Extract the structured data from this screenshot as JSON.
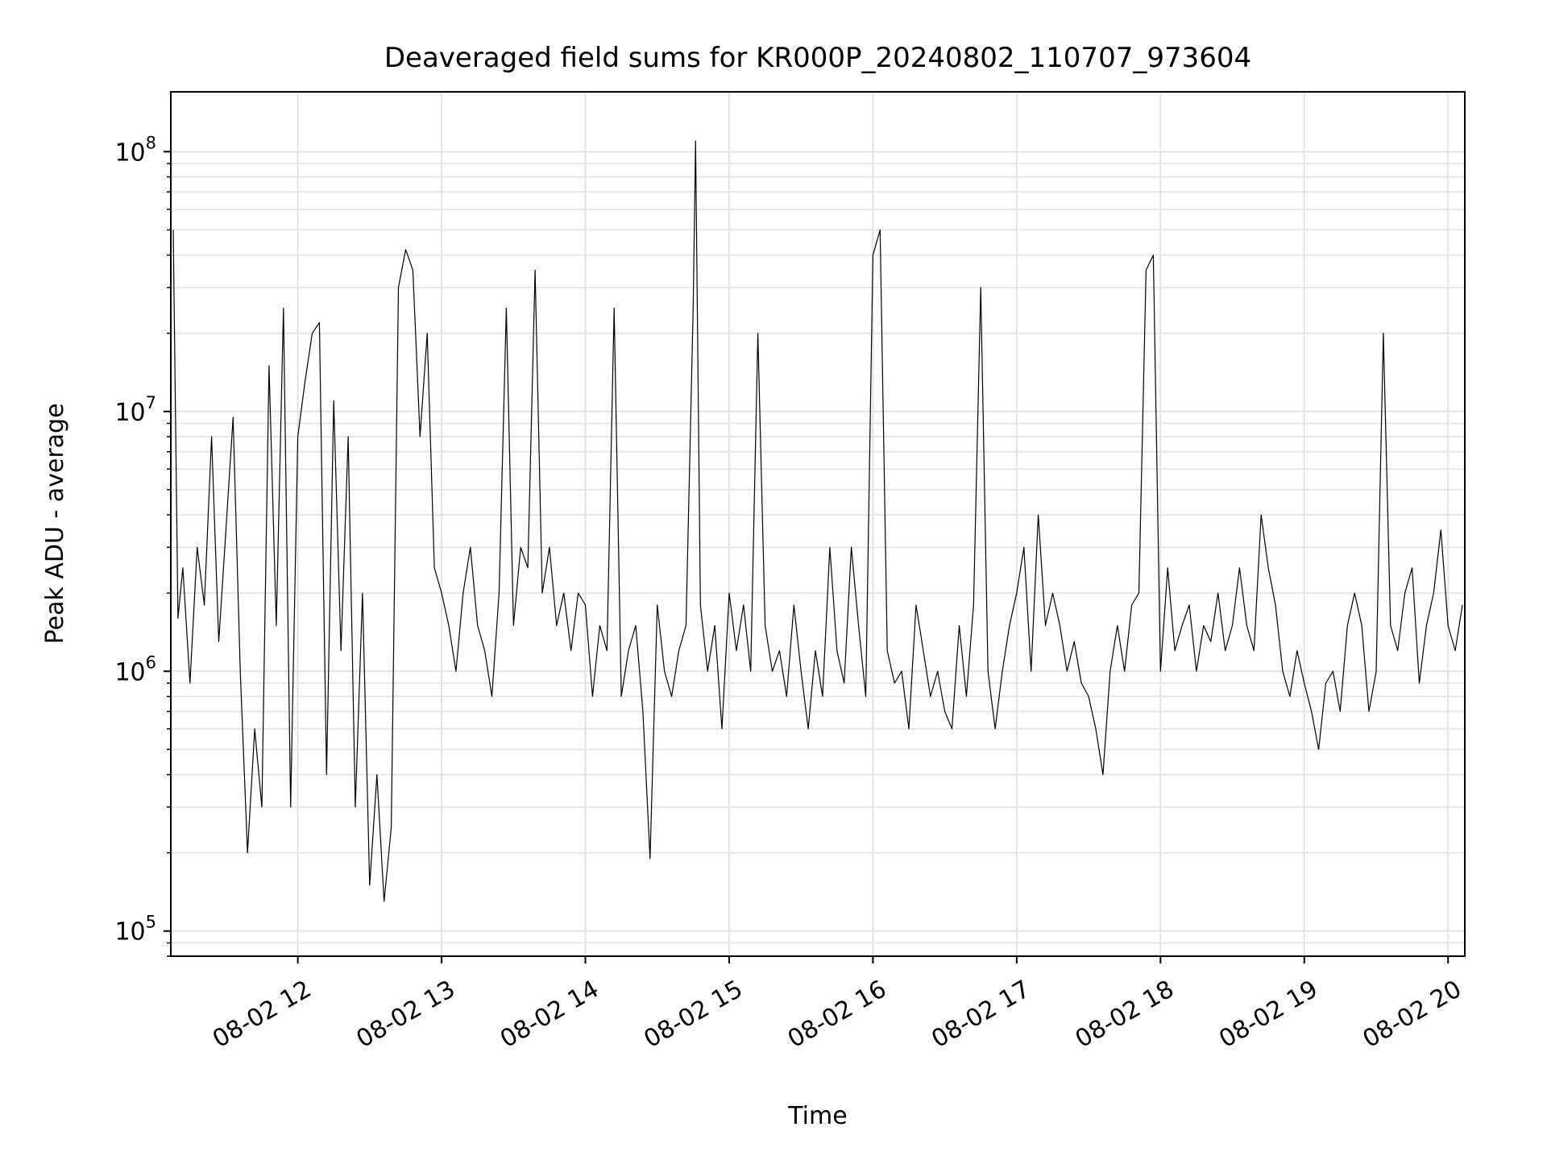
{
  "chart_data": {
    "type": "line",
    "title": "Deaveraged field sums for KR000P_20240802_110707_973604",
    "xlabel": "Time",
    "ylabel": "Peak ADU - average",
    "xlim": [
      "2024-08-02 11:07",
      "2024-08-02 20:07"
    ],
    "ylim": [
      80000,
      170000000
    ],
    "yscale": "log",
    "grid": true,
    "line_color": "#000000",
    "x_ticks": [
      "08-02 12",
      "08-02 13",
      "08-02 14",
      "08-02 15",
      "08-02 16",
      "08-02 17",
      "08-02 18",
      "08-02 19",
      "08-02 20"
    ],
    "y_ticks": [
      {
        "value": 100000,
        "base": "10",
        "exp": "5"
      },
      {
        "value": 1000000,
        "base": "10",
        "exp": "6"
      },
      {
        "value": 10000000,
        "base": "10",
        "exp": "7"
      },
      {
        "value": 100000000,
        "base": "10",
        "exp": "8"
      }
    ],
    "series": [
      {
        "x": [
          "2024-08-02 11:08",
          "2024-08-02 11:10",
          "2024-08-02 11:12",
          "2024-08-02 11:15",
          "2024-08-02 11:18",
          "2024-08-02 11:21",
          "2024-08-02 11:24",
          "2024-08-02 11:27",
          "2024-08-02 11:30",
          "2024-08-02 11:33",
          "2024-08-02 11:36",
          "2024-08-02 11:39",
          "2024-08-02 11:42",
          "2024-08-02 11:45",
          "2024-08-02 11:48",
          "2024-08-02 11:51",
          "2024-08-02 11:54",
          "2024-08-02 11:57",
          "2024-08-02 12:00",
          "2024-08-02 12:03",
          "2024-08-02 12:06",
          "2024-08-02 12:09",
          "2024-08-02 12:12",
          "2024-08-02 12:15",
          "2024-08-02 12:18",
          "2024-08-02 12:21",
          "2024-08-02 12:24",
          "2024-08-02 12:27",
          "2024-08-02 12:30",
          "2024-08-02 12:33",
          "2024-08-02 12:36",
          "2024-08-02 12:39",
          "2024-08-02 12:42",
          "2024-08-02 12:45",
          "2024-08-02 12:48",
          "2024-08-02 12:51",
          "2024-08-02 12:54",
          "2024-08-02 12:57",
          "2024-08-02 13:00",
          "2024-08-02 13:03",
          "2024-08-02 13:06",
          "2024-08-02 13:09",
          "2024-08-02 13:12",
          "2024-08-02 13:15",
          "2024-08-02 13:18",
          "2024-08-02 13:21",
          "2024-08-02 13:24",
          "2024-08-02 13:27",
          "2024-08-02 13:30",
          "2024-08-02 13:33",
          "2024-08-02 13:36",
          "2024-08-02 13:39",
          "2024-08-02 13:42",
          "2024-08-02 13:45",
          "2024-08-02 13:48",
          "2024-08-02 13:51",
          "2024-08-02 13:54",
          "2024-08-02 13:57",
          "2024-08-02 14:00",
          "2024-08-02 14:03",
          "2024-08-02 14:06",
          "2024-08-02 14:09",
          "2024-08-02 14:12",
          "2024-08-02 14:15",
          "2024-08-02 14:18",
          "2024-08-02 14:21",
          "2024-08-02 14:24",
          "2024-08-02 14:27",
          "2024-08-02 14:30",
          "2024-08-02 14:33",
          "2024-08-02 14:36",
          "2024-08-02 14:39",
          "2024-08-02 14:42",
          "2024-08-02 14:45",
          "2024-08-02 14:46",
          "2024-08-02 14:48",
          "2024-08-02 14:51",
          "2024-08-02 14:54",
          "2024-08-02 14:57",
          "2024-08-02 15:00",
          "2024-08-02 15:03",
          "2024-08-02 15:06",
          "2024-08-02 15:09",
          "2024-08-02 15:12",
          "2024-08-02 15:15",
          "2024-08-02 15:18",
          "2024-08-02 15:21",
          "2024-08-02 15:24",
          "2024-08-02 15:27",
          "2024-08-02 15:30",
          "2024-08-02 15:33",
          "2024-08-02 15:36",
          "2024-08-02 15:39",
          "2024-08-02 15:42",
          "2024-08-02 15:45",
          "2024-08-02 15:48",
          "2024-08-02 15:51",
          "2024-08-02 15:54",
          "2024-08-02 15:57",
          "2024-08-02 16:00",
          "2024-08-02 16:03",
          "2024-08-02 16:06",
          "2024-08-02 16:09",
          "2024-08-02 16:12",
          "2024-08-02 16:15",
          "2024-08-02 16:18",
          "2024-08-02 16:21",
          "2024-08-02 16:24",
          "2024-08-02 16:27",
          "2024-08-02 16:30",
          "2024-08-02 16:33",
          "2024-08-02 16:36",
          "2024-08-02 16:39",
          "2024-08-02 16:42",
          "2024-08-02 16:45",
          "2024-08-02 16:48",
          "2024-08-02 16:51",
          "2024-08-02 16:54",
          "2024-08-02 16:57",
          "2024-08-02 17:00",
          "2024-08-02 17:03",
          "2024-08-02 17:06",
          "2024-08-02 17:09",
          "2024-08-02 17:12",
          "2024-08-02 17:15",
          "2024-08-02 17:18",
          "2024-08-02 17:21",
          "2024-08-02 17:24",
          "2024-08-02 17:27",
          "2024-08-02 17:30",
          "2024-08-02 17:33",
          "2024-08-02 17:36",
          "2024-08-02 17:39",
          "2024-08-02 17:42",
          "2024-08-02 17:45",
          "2024-08-02 17:48",
          "2024-08-02 17:51",
          "2024-08-02 17:54",
          "2024-08-02 17:57",
          "2024-08-02 18:00",
          "2024-08-02 18:03",
          "2024-08-02 18:06",
          "2024-08-02 18:09",
          "2024-08-02 18:12",
          "2024-08-02 18:15",
          "2024-08-02 18:18",
          "2024-08-02 18:21",
          "2024-08-02 18:24",
          "2024-08-02 18:27",
          "2024-08-02 18:30",
          "2024-08-02 18:33",
          "2024-08-02 18:36",
          "2024-08-02 18:39",
          "2024-08-02 18:42",
          "2024-08-02 18:45",
          "2024-08-02 18:48",
          "2024-08-02 18:51",
          "2024-08-02 18:54",
          "2024-08-02 18:57",
          "2024-08-02 19:00",
          "2024-08-02 19:03",
          "2024-08-02 19:06",
          "2024-08-02 19:09",
          "2024-08-02 19:12",
          "2024-08-02 19:15",
          "2024-08-02 19:18",
          "2024-08-02 19:21",
          "2024-08-02 19:24",
          "2024-08-02 19:27",
          "2024-08-02 19:30",
          "2024-08-02 19:33",
          "2024-08-02 19:36",
          "2024-08-02 19:39",
          "2024-08-02 19:42",
          "2024-08-02 19:45",
          "2024-08-02 19:48",
          "2024-08-02 19:51",
          "2024-08-02 19:54",
          "2024-08-02 19:57",
          "2024-08-02 20:00",
          "2024-08-02 20:03",
          "2024-08-02 20:06"
        ],
        "y": [
          50000000,
          1600000,
          2500000,
          900000,
          3000000,
          1800000,
          8000000,
          1300000,
          3500000,
          9500000,
          1000000,
          200000,
          600000,
          300000,
          15000000,
          1500000,
          25000000,
          300000,
          8000000,
          13000000,
          20000000,
          22000000,
          400000,
          11000000,
          1200000,
          8000000,
          300000,
          2000000,
          150000,
          400000,
          130000,
          250000,
          30000000,
          42000000,
          35000000,
          8000000,
          20000000,
          2500000,
          2000000,
          1500000,
          1000000,
          2000000,
          3000000,
          1500000,
          1200000,
          800000,
          2000000,
          25000000,
          1500000,
          3000000,
          2500000,
          35000000,
          2000000,
          3000000,
          1500000,
          2000000,
          1200000,
          2000000,
          1800000,
          800000,
          1500000,
          1200000,
          25000000,
          800000,
          1200000,
          1500000,
          700000,
          190000,
          1800000,
          1000000,
          800000,
          1200000,
          1500000,
          25000000,
          110000000,
          1800000,
          1000000,
          1500000,
          600000,
          2000000,
          1200000,
          1800000,
          1000000,
          20000000,
          1500000,
          1000000,
          1200000,
          800000,
          1800000,
          1000000,
          600000,
          1200000,
          800000,
          3000000,
          1200000,
          900000,
          3000000,
          1500000,
          800000,
          40000000,
          50000000,
          1200000,
          900000,
          1000000,
          600000,
          1800000,
          1200000,
          800000,
          1000000,
          700000,
          600000,
          1500000,
          800000,
          1800000,
          30000000,
          1000000,
          600000,
          1000000,
          1500000,
          2000000,
          3000000,
          1000000,
          4000000,
          1500000,
          2000000,
          1500000,
          1000000,
          1300000,
          900000,
          800000,
          600000,
          400000,
          1000000,
          1500000,
          1000000,
          1800000,
          2000000,
          35000000,
          40000000,
          1000000,
          2500000,
          1200000,
          1500000,
          1800000,
          1000000,
          1500000,
          1300000,
          2000000,
          1200000,
          1500000,
          2500000,
          1500000,
          1200000,
          4000000,
          2500000,
          1800000,
          1000000,
          800000,
          1200000,
          900000,
          700000,
          500000,
          900000,
          1000000,
          700000,
          1500000,
          2000000,
          1500000,
          700000,
          1000000,
          20000000,
          1500000,
          1200000,
          2000000,
          2500000,
          900000,
          1500000,
          2000000,
          3500000,
          1500000,
          1200000,
          1800000
        ],
        "stroke_width": 1.2
      }
    ]
  }
}
